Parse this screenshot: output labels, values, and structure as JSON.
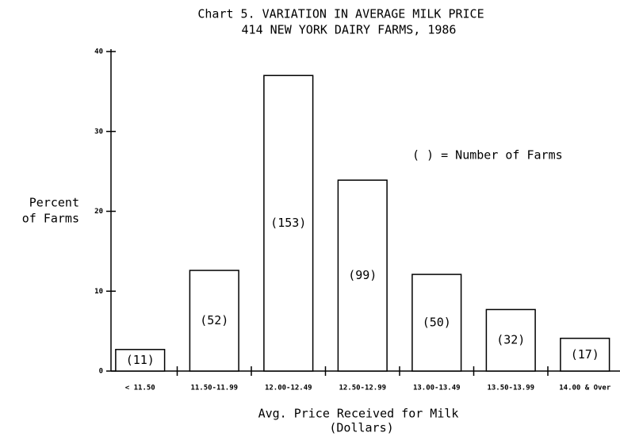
{
  "chart_data": {
    "type": "bar",
    "title": [
      "Chart 5. VARIATION IN AVERAGE MILK PRICE",
      "414 NEW YORK DAIRY FARMS, 1986"
    ],
    "ylabel": [
      "Percent",
      "of Farms"
    ],
    "xlabel": [
      "Avg. Price Received for Milk",
      "(Dollars)"
    ],
    "annotation": "( ) = Number of Farms",
    "categories": [
      "< 11.50",
      "11.50-11.99",
      "12.00-12.49",
      "12.50-12.99",
      "13.00-13.49",
      "13.50-13.99",
      "14.00 & Over"
    ],
    "values": [
      2.7,
      12.6,
      37,
      23.9,
      12.1,
      7.7,
      4.1
    ],
    "bar_labels": [
      "(11)",
      "(52)",
      "(153)",
      "(99)",
      "(50)",
      "(32)",
      "(17)"
    ],
    "color": "#ffffff",
    "ylim": [
      0,
      40
    ],
    "yticks": [
      0,
      10,
      20,
      30,
      40
    ],
    "grid": false
  }
}
